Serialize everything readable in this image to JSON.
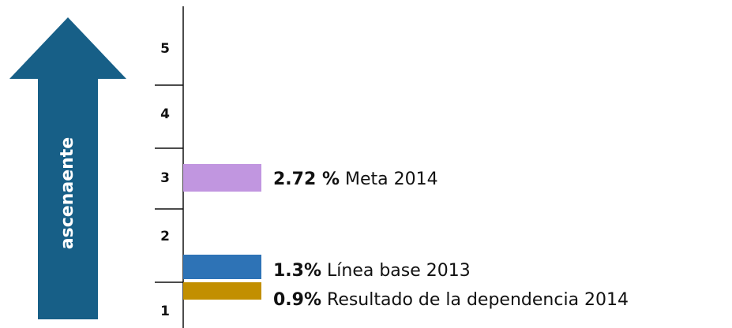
{
  "arrow": {
    "label": "ascenaente",
    "color": "#175f87"
  },
  "levels": [
    "5",
    "4",
    "3",
    "2",
    "1"
  ],
  "indicators": [
    {
      "value_label": "2.72 %",
      "label": "Meta 2014",
      "color": "#c196e0"
    },
    {
      "value_label": "1.3%",
      "label": "Línea base 2013",
      "color": "#2e73b6"
    },
    {
      "value_label": "0.9%",
      "label": "Resultado de la dependencia 2014",
      "color": "#c28f00"
    }
  ]
}
